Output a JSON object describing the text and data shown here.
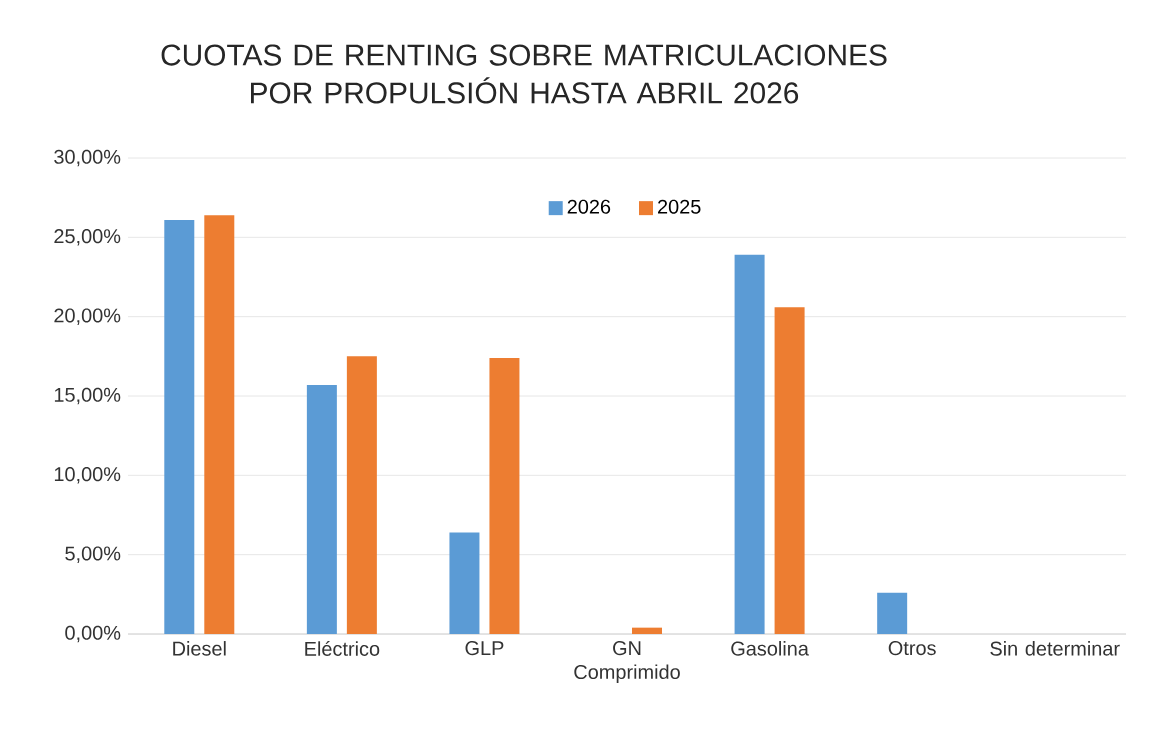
{
  "chart_data": {
    "type": "bar",
    "title": "CUOTAS DE RENTING SOBRE MATRICULACIONES POR PROPULSIÓN HASTA ABRIL 2026",
    "categories": [
      "Diesel",
      "Eléctrico",
      "GLP",
      "GN Comprimido",
      "Gasolina",
      "Otros",
      "Sin determinar"
    ],
    "series": [
      {
        "name": "2026",
        "color": "#5b9bd5",
        "values": [
          26.1,
          15.7,
          6.4,
          0,
          23.9,
          2.6,
          0
        ]
      },
      {
        "name": "2025",
        "color": "#ed7d31",
        "values": [
          26.4,
          17.5,
          17.4,
          0.4,
          20.6,
          0,
          0
        ]
      }
    ],
    "ylim": [
      0,
      30
    ],
    "yticks": [
      {
        "value": 0,
        "label": "0,00%"
      },
      {
        "value": 5,
        "label": "5,00%"
      },
      {
        "value": 10,
        "label": "10,00%"
      },
      {
        "value": 15,
        "label": "15,00%"
      },
      {
        "value": 20,
        "label": "20,00%"
      },
      {
        "value": 25,
        "label": "25,00%"
      },
      {
        "value": 30,
        "label": "30,00%"
      }
    ],
    "grid": "y",
    "legend": "top"
  }
}
